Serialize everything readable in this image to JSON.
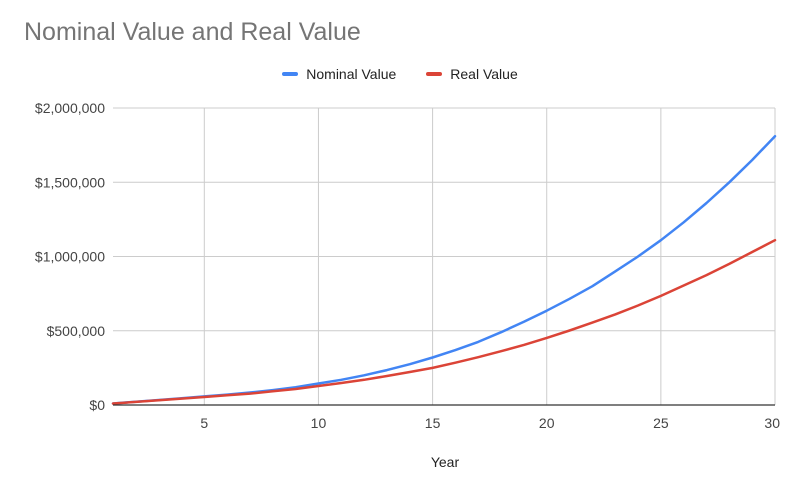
{
  "chart_data": {
    "type": "line",
    "title": "Nominal Value and Real Value",
    "xlabel": "Year",
    "ylabel": "",
    "xlim": [
      1,
      30
    ],
    "ylim": [
      0,
      2000000
    ],
    "x_ticks": [
      5,
      10,
      15,
      20,
      25,
      30
    ],
    "x_tick_labels": [
      "5",
      "10",
      "15",
      "20",
      "25",
      "30"
    ],
    "y_ticks": [
      0,
      500000,
      1000000,
      1500000,
      2000000
    ],
    "y_tick_labels": [
      "$0",
      "$500,000",
      "$1,000,000",
      "$1,500,000",
      "$2,000,000"
    ],
    "grid": true,
    "legend_position": "top-center",
    "x": [
      1,
      2,
      3,
      4,
      5,
      6,
      7,
      8,
      9,
      10,
      11,
      12,
      13,
      14,
      15,
      16,
      17,
      18,
      19,
      20,
      21,
      22,
      23,
      24,
      25,
      26,
      27,
      28,
      29,
      30
    ],
    "series": [
      {
        "name": "Nominal Value",
        "color": "#4285f4",
        "values": [
          10000,
          22000,
          34000,
          46000,
          58000,
          70000,
          84000,
          100000,
          120000,
          145000,
          170000,
          200000,
          235000,
          275000,
          320000,
          370000,
          425000,
          490000,
          560000,
          635000,
          715000,
          800000,
          900000,
          1000000,
          1110000,
          1230000,
          1360000,
          1500000,
          1650000,
          1810000
        ]
      },
      {
        "name": "Real Value",
        "color": "#db4437",
        "values": [
          10000,
          21000,
          32000,
          43000,
          54000,
          65000,
          77000,
          92000,
          108000,
          128000,
          148000,
          170000,
          195000,
          222000,
          250000,
          285000,
          322000,
          362000,
          405000,
          452000,
          502000,
          555000,
          610000,
          670000,
          735000,
          805000,
          875000,
          950000,
          1030000,
          1110000
        ]
      }
    ]
  }
}
